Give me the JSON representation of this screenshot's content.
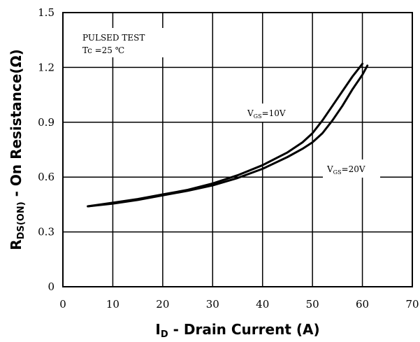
{
  "chart_data": {
    "type": "line",
    "title": "",
    "xlabel": {
      "main": "I",
      "sub": "D",
      "rest": " - Drain Current (A)"
    },
    "ylabel": {
      "main": "R",
      "sub": "DS(ON)",
      "rest": " - On Resistance(Ω)"
    },
    "xlim": [
      0,
      70
    ],
    "ylim": [
      0,
      1.5
    ],
    "xticks": [
      "0",
      "10",
      "20",
      "30",
      "40",
      "50",
      "60",
      "70"
    ],
    "yticks": [
      "0",
      "0.3",
      "0.6",
      "0.9",
      "1.2",
      "1.5"
    ],
    "grid": true,
    "annotations": {
      "test_line1": "PULSED   TEST",
      "test_line2": "Tc =25  ℃"
    },
    "series": [
      {
        "label_main": "V",
        "label_sub": "GS",
        "label_rest": "=10V",
        "x": [
          5,
          10,
          15,
          20,
          25,
          30,
          35,
          40,
          45,
          48,
          50,
          52,
          54,
          56,
          58,
          60
        ],
        "y": [
          0.44,
          0.46,
          0.48,
          0.505,
          0.53,
          0.565,
          0.61,
          0.665,
          0.735,
          0.79,
          0.84,
          0.91,
          0.99,
          1.07,
          1.15,
          1.22
        ]
      },
      {
        "label_main": "V",
        "label_sub": "GS",
        "label_rest": "=20V",
        "x": [
          5,
          10,
          15,
          20,
          25,
          30,
          35,
          40,
          45,
          48,
          50,
          52,
          54,
          56,
          58,
          60,
          61
        ],
        "y": [
          0.44,
          0.455,
          0.475,
          0.5,
          0.525,
          0.555,
          0.595,
          0.645,
          0.71,
          0.755,
          0.79,
          0.84,
          0.91,
          0.99,
          1.08,
          1.16,
          1.21
        ]
      }
    ]
  }
}
